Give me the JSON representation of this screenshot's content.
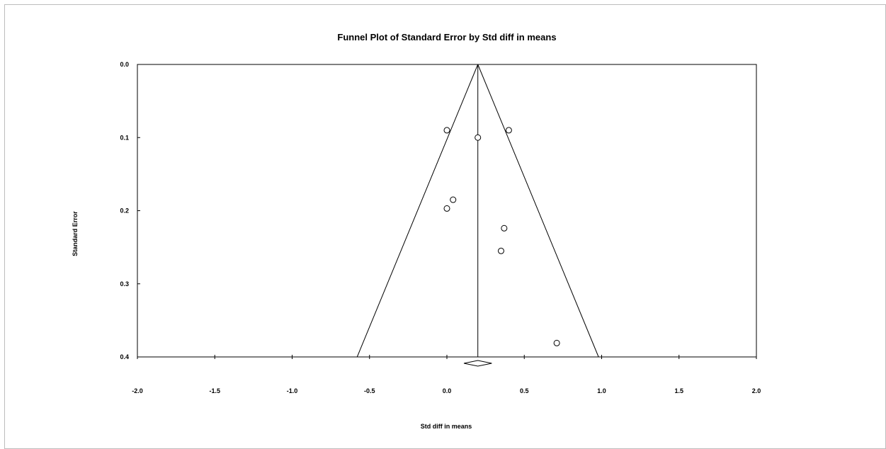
{
  "chart_data": {
    "type": "scatter",
    "title": "Funnel Plot of Standard Error by Std diff in means",
    "xlabel": "Std diff in means",
    "ylabel": "Standard Error",
    "xlim": [
      -2.0,
      2.0
    ],
    "ylim": [
      0.0,
      0.4
    ],
    "y_reversed": true,
    "grid": false,
    "x_ticks": [
      "-2.0",
      "-1.5",
      "-1.0",
      "-0.5",
      "0.0",
      "0.5",
      "1.0",
      "1.5",
      "2.0"
    ],
    "y_ticks": [
      "0.0",
      "0.1",
      "0.2",
      "0.3",
      "0.4"
    ],
    "summary_effect": 0.2,
    "funnel": {
      "apex_y": 0.0,
      "base_y": 0.4,
      "base_x": [
        -0.58,
        0.98
      ]
    },
    "diamond": {
      "x_low": 0.11,
      "x_center": 0.2,
      "x_high": 0.29
    },
    "series": [
      {
        "points": [
          {
            "x": 0.0,
            "y": 0.09
          },
          {
            "x": 0.2,
            "y": 0.1
          },
          {
            "x": 0.4,
            "y": 0.09
          },
          {
            "x": 0.04,
            "y": 0.185
          },
          {
            "x": 0.0,
            "y": 0.197
          },
          {
            "x": 0.37,
            "y": 0.224
          },
          {
            "x": 0.35,
            "y": 0.255
          },
          {
            "x": 0.71,
            "y": 0.381
          }
        ]
      }
    ]
  }
}
